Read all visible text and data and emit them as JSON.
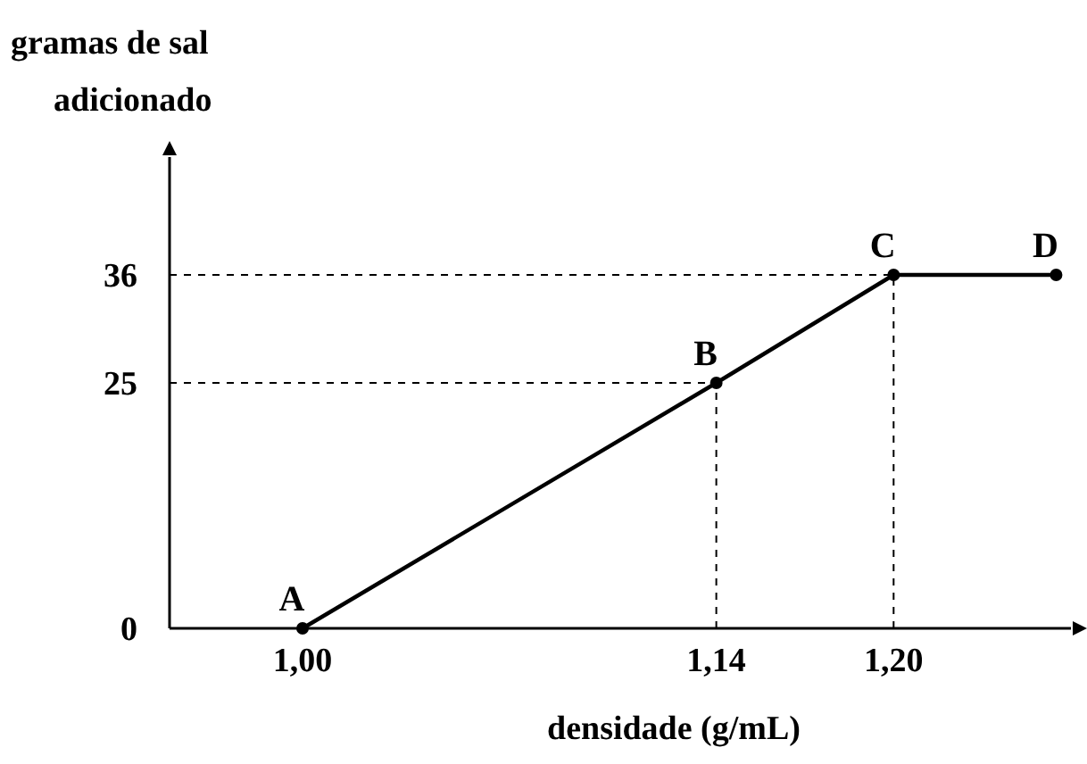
{
  "chart_data": {
    "type": "line",
    "xlabel": "densidade (g/mL)",
    "ylabel": "gramas de sal adicionado",
    "x": [
      1.0,
      1.14,
      1.2,
      1.255
    ],
    "series": [
      {
        "color": "#000000",
        "values": [
          0,
          25,
          36,
          36
        ]
      }
    ],
    "xlim": [
      0.955,
      1.26
    ],
    "xticks": [
      {
        "value": 1.0,
        "label": "1,00"
      },
      {
        "value": 1.14,
        "label": "1,14"
      },
      {
        "value": 1.2,
        "label": "1,20"
      }
    ],
    "ylim": [
      0,
      48
    ],
    "yticks": [
      0,
      25,
      36
    ],
    "marker": "circle",
    "line_style": "solid",
    "grid": false,
    "ref_lines": [
      {
        "axis": "y",
        "value": 25,
        "line_style": "dashed",
        "color": "#000000"
      },
      {
        "axis": "y",
        "value": 36,
        "line_style": "dashed",
        "color": "#000000"
      },
      {
        "axis": "x",
        "value": 1.14,
        "line_style": "dashed",
        "color": "#000000"
      },
      {
        "axis": "x",
        "value": 1.2,
        "line_style": "dashed",
        "color": "#000000"
      }
    ],
    "annotations": [
      {
        "text": "A",
        "x": 1.0,
        "y": 0
      },
      {
        "text": "B",
        "x": 1.14,
        "y": 25
      },
      {
        "text": "C",
        "x": 1.2,
        "y": 36
      },
      {
        "text": "D",
        "x": 1.255,
        "y": 36
      }
    ]
  }
}
